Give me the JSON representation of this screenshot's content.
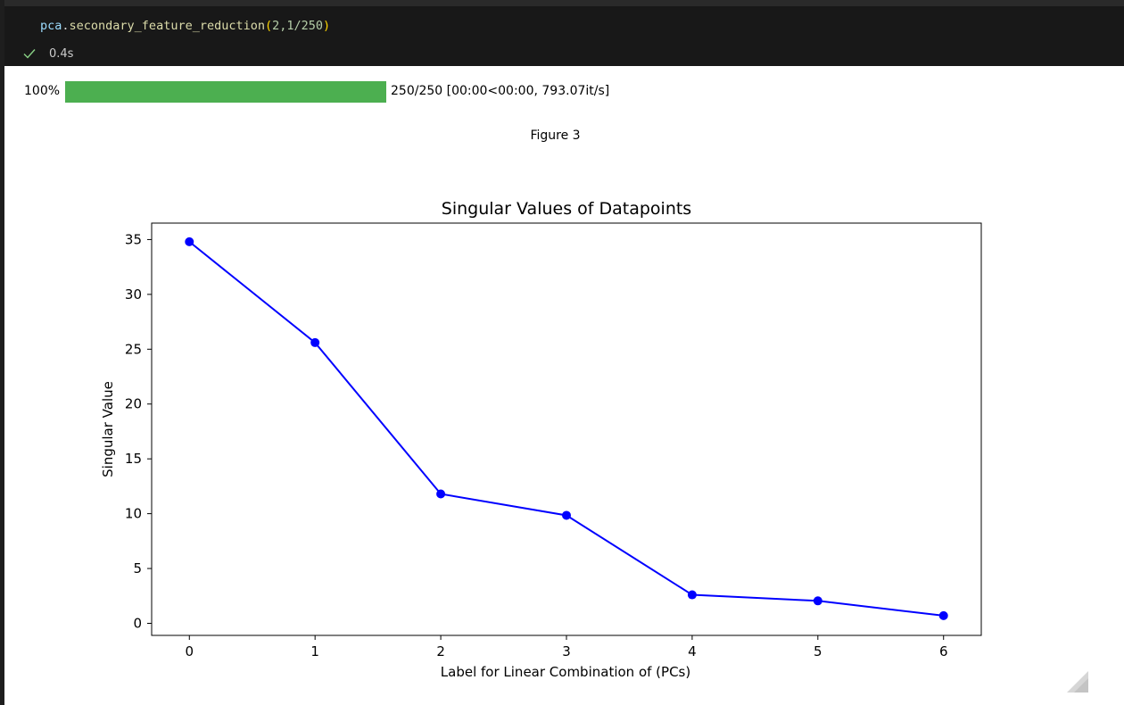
{
  "cell": {
    "code": {
      "object": "pca",
      "method": "secondary_feature_reduction",
      "args": "2,1/250"
    },
    "status_time": "0.4s"
  },
  "progress": {
    "percent_label": "100%",
    "fraction": 1.0,
    "text": "250/250 [00:00<00:00, 793.07it/s]"
  },
  "figure_label": "Figure 3",
  "chart_data": {
    "type": "line",
    "title": "Singular Values of Datapoints",
    "xlabel": "Label for Linear Combination of (PCs)",
    "ylabel": "Singular Value",
    "x": [
      0,
      1,
      2,
      3,
      4,
      5,
      6
    ],
    "y": [
      34.8,
      25.6,
      11.8,
      9.85,
      2.6,
      2.05,
      0.7
    ],
    "xticks": [
      0,
      1,
      2,
      3,
      4,
      5,
      6
    ],
    "yticks": [
      0,
      5,
      10,
      15,
      20,
      25,
      30,
      35
    ],
    "xlim": [
      -0.3,
      6.3
    ],
    "ylim": [
      -1.1,
      36.5
    ],
    "color": "#0000ff",
    "marker": "circle",
    "grid": false
  },
  "colors": {
    "progress_fill": "#4caf50",
    "check": "#89d185"
  }
}
